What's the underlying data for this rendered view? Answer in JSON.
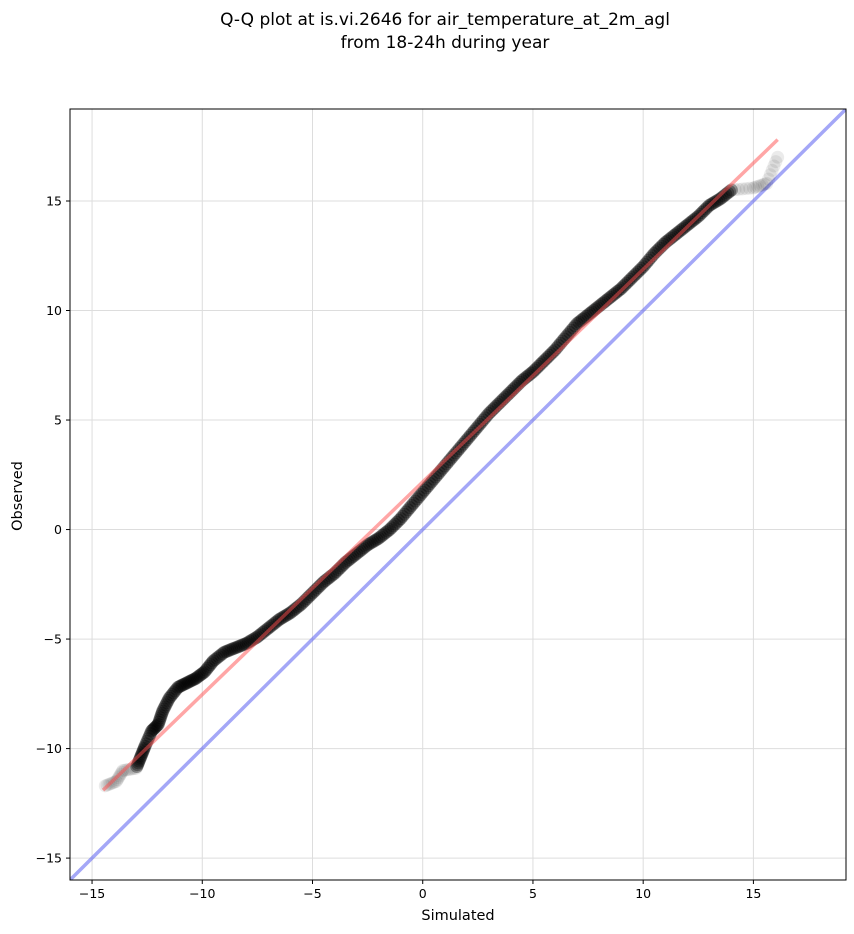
{
  "chart_data": {
    "type": "scatter",
    "title_line1": "Q-Q plot at is.vi.2646 for air_temperature_at_2m_agl",
    "title_line2": "from 18-24h during year",
    "xlabel": "Simulated",
    "ylabel": "Observed",
    "xlim": [
      -16,
      19.2
    ],
    "ylim": [
      -16,
      19.2
    ],
    "xticks": [
      -15,
      -10,
      -5,
      0,
      5,
      10,
      15
    ],
    "yticks": [
      -15,
      -10,
      -5,
      0,
      5,
      10,
      15
    ],
    "grid": true,
    "colors": {
      "points": "#000000",
      "fit_line": "#ff4d4d",
      "identity_line": "#5a5ef0",
      "grid": "#dddddd"
    },
    "fit_line": {
      "x": [
        -14.5,
        16.1
      ],
      "y": [
        -11.9,
        17.8
      ]
    },
    "identity_line": {
      "x": [
        -16,
        19.2
      ],
      "y": [
        -16,
        19.2
      ]
    },
    "points": [
      {
        "x": -14.4,
        "y": -11.7
      },
      {
        "x": -13.9,
        "y": -11.5
      },
      {
        "x": -13.6,
        "y": -11.0
      },
      {
        "x": -13.0,
        "y": -10.9
      },
      {
        "x": -12.8,
        "y": -10.4
      },
      {
        "x": -12.6,
        "y": -9.9
      },
      {
        "x": -12.3,
        "y": -9.2
      },
      {
        "x": -12.0,
        "y": -8.9
      },
      {
        "x": -11.8,
        "y": -8.3
      },
      {
        "x": -11.5,
        "y": -7.7
      },
      {
        "x": -11.1,
        "y": -7.2
      },
      {
        "x": -10.7,
        "y": -7.0
      },
      {
        "x": -10.3,
        "y": -6.8
      },
      {
        "x": -9.9,
        "y": -6.5
      },
      {
        "x": -9.5,
        "y": -6.0
      },
      {
        "x": -9.0,
        "y": -5.6
      },
      {
        "x": -8.5,
        "y": -5.4
      },
      {
        "x": -8.0,
        "y": -5.2
      },
      {
        "x": -7.5,
        "y": -4.9
      },
      {
        "x": -7.0,
        "y": -4.5
      },
      {
        "x": -6.5,
        "y": -4.1
      },
      {
        "x": -6.0,
        "y": -3.8
      },
      {
        "x": -5.5,
        "y": -3.4
      },
      {
        "x": -5.0,
        "y": -2.9
      },
      {
        "x": -4.5,
        "y": -2.4
      },
      {
        "x": -4.0,
        "y": -2.0
      },
      {
        "x": -3.5,
        "y": -1.5
      },
      {
        "x": -3.0,
        "y": -1.1
      },
      {
        "x": -2.5,
        "y": -0.7
      },
      {
        "x": -2.0,
        "y": -0.4
      },
      {
        "x": -1.5,
        "y": 0.0
      },
      {
        "x": -1.0,
        "y": 0.5
      },
      {
        "x": -0.5,
        "y": 1.1
      },
      {
        "x": 0.0,
        "y": 1.7
      },
      {
        "x": 0.5,
        "y": 2.3
      },
      {
        "x": 1.0,
        "y": 2.9
      },
      {
        "x": 1.5,
        "y": 3.5
      },
      {
        "x": 2.0,
        "y": 4.1
      },
      {
        "x": 2.5,
        "y": 4.7
      },
      {
        "x": 3.0,
        "y": 5.3
      },
      {
        "x": 3.5,
        "y": 5.8
      },
      {
        "x": 4.0,
        "y": 6.3
      },
      {
        "x": 4.5,
        "y": 6.8
      },
      {
        "x": 5.0,
        "y": 7.2
      },
      {
        "x": 5.5,
        "y": 7.7
      },
      {
        "x": 6.0,
        "y": 8.2
      },
      {
        "x": 6.5,
        "y": 8.8
      },
      {
        "x": 7.0,
        "y": 9.4
      },
      {
        "x": 7.5,
        "y": 9.8
      },
      {
        "x": 8.0,
        "y": 10.2
      },
      {
        "x": 8.5,
        "y": 10.6
      },
      {
        "x": 9.0,
        "y": 11.0
      },
      {
        "x": 9.5,
        "y": 11.5
      },
      {
        "x": 10.0,
        "y": 12.0
      },
      {
        "x": 10.5,
        "y": 12.6
      },
      {
        "x": 11.0,
        "y": 13.1
      },
      {
        "x": 11.5,
        "y": 13.5
      },
      {
        "x": 12.0,
        "y": 13.9
      },
      {
        "x": 12.5,
        "y": 14.3
      },
      {
        "x": 13.0,
        "y": 14.8
      },
      {
        "x": 13.5,
        "y": 15.1
      },
      {
        "x": 14.0,
        "y": 15.5
      },
      {
        "x": 15.0,
        "y": 15.6
      },
      {
        "x": 15.6,
        "y": 15.8
      },
      {
        "x": 16.1,
        "y": 17.0
      }
    ]
  }
}
